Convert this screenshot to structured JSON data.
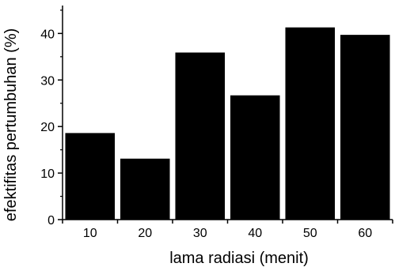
{
  "chart_data": {
    "type": "bar",
    "categories": [
      "10",
      "20",
      "30",
      "40",
      "50",
      "60"
    ],
    "values": [
      18.6,
      13.1,
      35.9,
      26.7,
      41.3,
      39.7
    ],
    "xlabel": "lama radiasi (menit)",
    "ylabel": "efektifitas pertumbuhan (%)",
    "ylim": [
      0,
      46
    ],
    "yticks": [
      "0",
      "10",
      "20",
      "30",
      "40"
    ],
    "grid": false,
    "bar_color": "#000000"
  }
}
